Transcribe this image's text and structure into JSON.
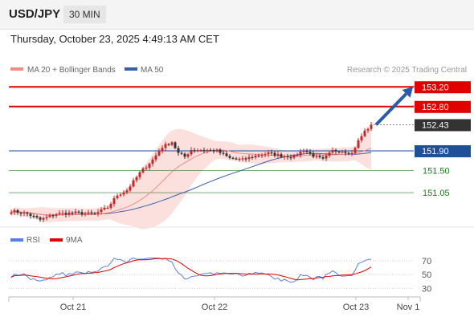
{
  "header": {
    "symbol": "USD/JPY",
    "timeframe": "30 MIN"
  },
  "datetime": "Thursday, October 23, 2025 4:49:13 AM CET",
  "colors": {
    "up": "#c62828",
    "down": "#333333",
    "ma20": "#f28b82",
    "band": "#f9d6d3",
    "ma50": "#3a5fa8",
    "resistance": "#e00000",
    "support": "#1f7a1f",
    "pivot": "#1f4f99",
    "current": "#333333",
    "rsi": "#5b7fe0",
    "rsi_ma": "#e00000",
    "arrow": "#2a5ca8"
  },
  "chart_data": {
    "type": "candlestick",
    "legend": [
      {
        "name": "MA 20 + Bollinger Bands",
        "color": "#f28b82"
      },
      {
        "name": "MA 50",
        "color": "#3a5fa8"
      }
    ],
    "credit": "Research © 2025 Trading Central",
    "y_range": [
      150.35,
      153.4
    ],
    "x_ticks": [
      "Oct 21",
      "Oct 22",
      "Oct 23",
      "Nov 1"
    ],
    "current_price": 152.43,
    "levels": [
      {
        "label": "153.20",
        "value": 153.2,
        "kind": "resistance"
      },
      {
        "label": "152.80",
        "value": 152.8,
        "kind": "resistance"
      },
      {
        "label": "151.90",
        "value": 151.9,
        "kind": "pivot"
      },
      {
        "label": "151.50",
        "value": 151.5,
        "kind": "support"
      },
      {
        "label": "151.05",
        "value": 151.05,
        "kind": "support"
      }
    ],
    "current_label": "152.43",
    "forecast": {
      "from": 152.43,
      "to": 153.2
    },
    "close_knots": [
      [
        0,
        150.68
      ],
      [
        5,
        150.62
      ],
      [
        9,
        150.5
      ],
      [
        14,
        150.62
      ],
      [
        20,
        150.64
      ],
      [
        26,
        150.62
      ],
      [
        30,
        150.75
      ],
      [
        33,
        151.0
      ],
      [
        36,
        151.1
      ],
      [
        40,
        151.45
      ],
      [
        44,
        151.72
      ],
      [
        47,
        151.98
      ],
      [
        50,
        152.08
      ],
      [
        52,
        151.85
      ],
      [
        54,
        151.78
      ],
      [
        56,
        151.92
      ],
      [
        60,
        151.92
      ],
      [
        64,
        151.9
      ],
      [
        68,
        151.75
      ],
      [
        72,
        151.72
      ],
      [
        76,
        151.8
      ],
      [
        80,
        151.85
      ],
      [
        84,
        151.8
      ],
      [
        88,
        151.78
      ],
      [
        91,
        151.92
      ],
      [
        94,
        151.8
      ],
      [
        97,
        151.72
      ],
      [
        100,
        151.9
      ],
      [
        103,
        151.9
      ],
      [
        106,
        151.85
      ],
      [
        108,
        152.1
      ],
      [
        110,
        152.3
      ],
      [
        112,
        152.42
      ]
    ],
    "rsi": {
      "legend": [
        {
          "name": "RSI",
          "color": "#5b7fe0"
        },
        {
          "name": "9MA",
          "color": "#e00000"
        }
      ],
      "ticks": [
        "70",
        "50",
        "30"
      ],
      "range": [
        20,
        85
      ]
    }
  }
}
